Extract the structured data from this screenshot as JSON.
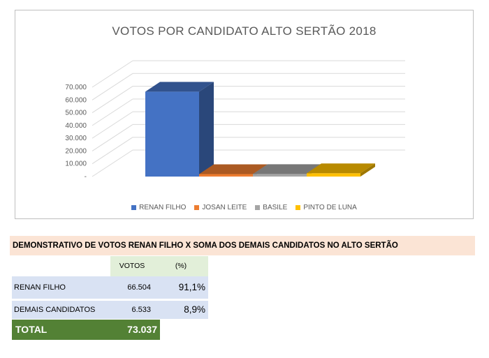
{
  "chart_data": {
    "type": "bar",
    "title": "VOTOS POR CANDIDATO ALTO SERTÃO 2018",
    "categories": [
      "RENAN FILHO",
      "JOSAN LEITE",
      "BASILE",
      "PINTO DE LUNA"
    ],
    "values": [
      66504,
      1900,
      2000,
      2600
    ],
    "colors": [
      "#4472c4",
      "#ed7d31",
      "#a5a5a5",
      "#ffc000"
    ],
    "ylim": [
      0,
      70000
    ],
    "yticks": [
      "-",
      "10.000",
      "20.000",
      "30.000",
      "40.000",
      "50.000",
      "60.000",
      "70.000"
    ],
    "legend_position": "bottom",
    "style": "3d-bar"
  },
  "summary": {
    "header": "DEMONSTRATIVO DE VOTOS  RENAN FILHO X SOMA DOS DEMAIS CANDIDATOS NO ALTO SERTÃO",
    "col_votes": "VOTOS",
    "col_pct": "(%)",
    "rows": [
      {
        "label": "RENAN FILHO",
        "votes": "66.504",
        "pct": "91,1%"
      },
      {
        "label": "DEMAIS CANDIDATOS",
        "votes": "6.533",
        "pct": "8,9%"
      }
    ],
    "total_label": "TOTAL",
    "total_value": "73.037"
  }
}
